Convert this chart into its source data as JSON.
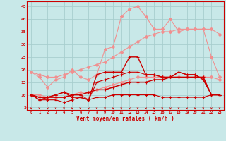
{
  "x": [
    0,
    1,
    2,
    3,
    4,
    5,
    6,
    7,
    8,
    9,
    10,
    11,
    12,
    13,
    14,
    15,
    16,
    17,
    18,
    19,
    20,
    21,
    22,
    23
  ],
  "line_pink_spiky": [
    19,
    17,
    13,
    16,
    17,
    20,
    17,
    16,
    18,
    28,
    29,
    41,
    44,
    45,
    41,
    36,
    36,
    40,
    35,
    36,
    36,
    36,
    25,
    17
  ],
  "line_pink_upper": [
    19,
    18,
    17,
    17,
    18,
    19,
    20,
    21,
    22,
    23,
    25,
    27,
    29,
    31,
    33,
    34,
    35,
    35,
    36,
    36,
    36,
    36,
    36,
    34
  ],
  "line_pink_lower": [
    10,
    10,
    9,
    9,
    9,
    10,
    11,
    11,
    12,
    13,
    14,
    15,
    16,
    17,
    17,
    17,
    17,
    17,
    17,
    17,
    17,
    17,
    17,
    16
  ],
  "line_red_flat": [
    10,
    8,
    8,
    8,
    7,
    8,
    9,
    8,
    9,
    9,
    10,
    10,
    10,
    10,
    10,
    10,
    9,
    9,
    9,
    9,
    9,
    9,
    10,
    10
  ],
  "line_red_upper": [
    10,
    9,
    9,
    10,
    11,
    10,
    10,
    8,
    15,
    16,
    17,
    18,
    19,
    19,
    18,
    18,
    17,
    17,
    19,
    18,
    18,
    16,
    10,
    10
  ],
  "line_red_peak": [
    10,
    8,
    9,
    10,
    11,
    9,
    9,
    8,
    18,
    19,
    19,
    19,
    25,
    25,
    18,
    18,
    17,
    17,
    19,
    18,
    18,
    16,
    10,
    10
  ],
  "line_red_ramp": [
    10,
    9,
    9,
    9,
    9,
    10,
    10,
    11,
    12,
    12,
    13,
    14,
    15,
    15,
    15,
    16,
    16,
    17,
    17,
    17,
    17,
    17,
    10,
    10
  ],
  "bg_color": "#c8e8e8",
  "grid_color": "#a8cece",
  "dark_red": "#cc0000",
  "pink_red": "#f09090",
  "xlabel": "Vent moyen/en rafales ( km/h )",
  "yticks": [
    5,
    10,
    15,
    20,
    25,
    30,
    35,
    40,
    45
  ],
  "ylim": [
    4,
    47
  ],
  "xlim": [
    -0.5,
    23.5
  ]
}
